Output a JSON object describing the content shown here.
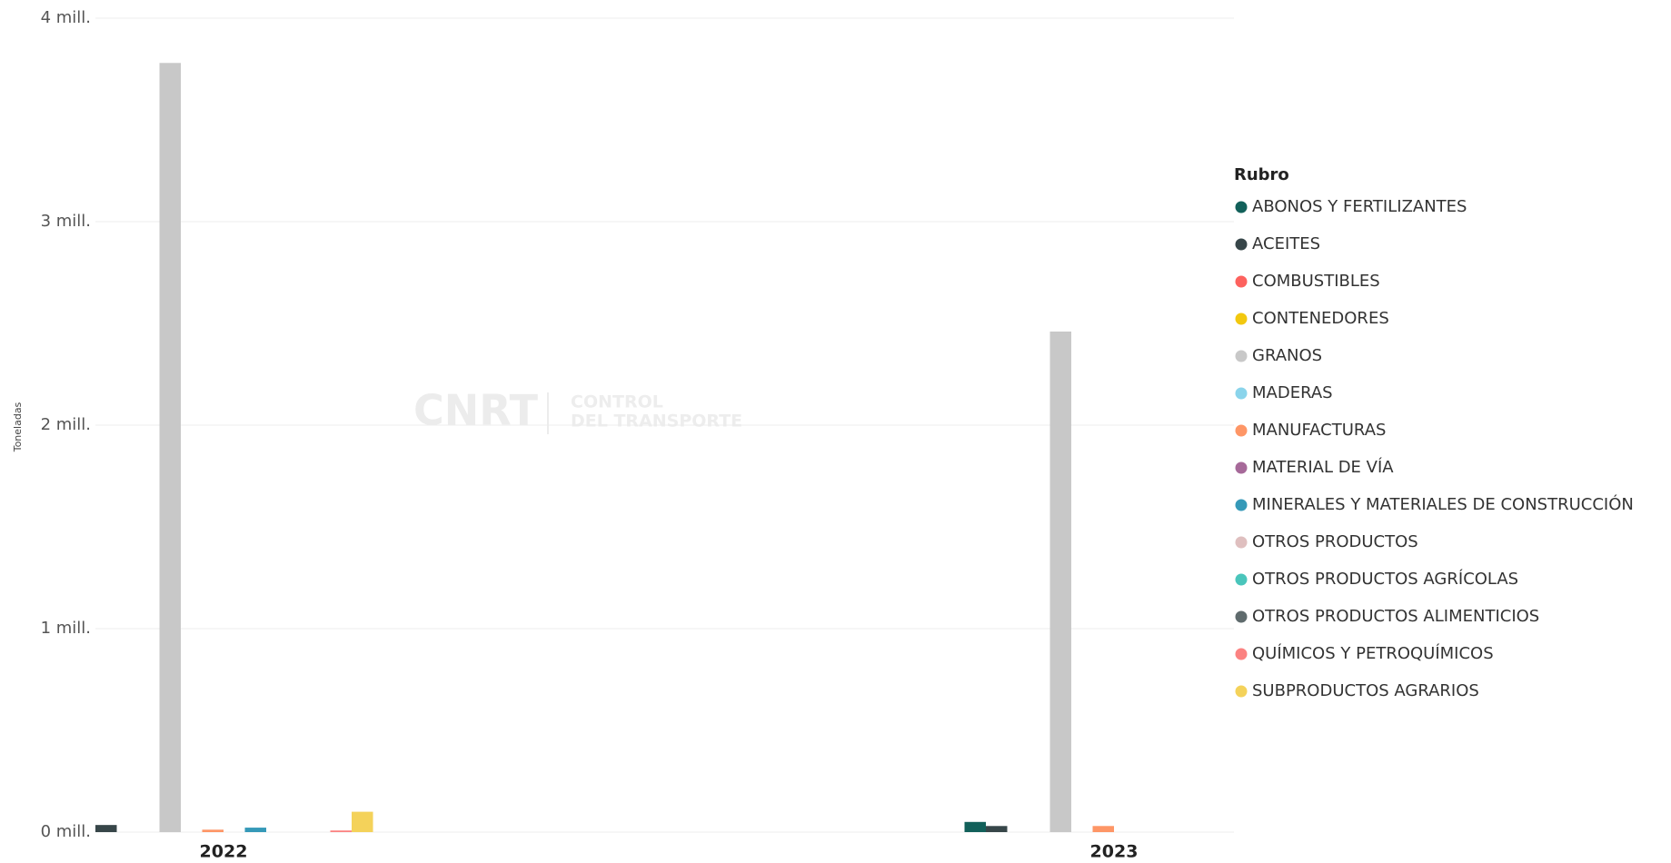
{
  "chart_data": {
    "type": "bar",
    "y_axis_label": "Toneladas",
    "legend_title": "Rubro",
    "watermark": [
      "CNRT",
      "CONTROL",
      "DEL TRANSPORTE"
    ],
    "categories": [
      "2022",
      "2023"
    ],
    "ylim": [
      0,
      4000000
    ],
    "yticks": [
      {
        "value": 0,
        "label": "0 mill."
      },
      {
        "value": 1000000,
        "label": "1 mill."
      },
      {
        "value": 2000000,
        "label": "2 mill."
      },
      {
        "value": 3000000,
        "label": "3 mill."
      },
      {
        "value": 4000000,
        "label": "4 mill."
      }
    ],
    "grid": true,
    "legend": "right",
    "series": [
      {
        "name": "ABONOS Y FERTILIZANTES",
        "color": "#12605a",
        "values": [
          null,
          50000
        ]
      },
      {
        "name": "ACEITES",
        "color": "#374649",
        "values": [
          35000,
          30000
        ]
      },
      {
        "name": "COMBUSTIBLES",
        "color": "#fd625e",
        "values": [
          null,
          null
        ]
      },
      {
        "name": "CONTENEDORES",
        "color": "#f2c80f",
        "values": [
          null,
          null
        ]
      },
      {
        "name": "GRANOS",
        "color": "#c8c8c8",
        "values": [
          3780000,
          2460000
        ]
      },
      {
        "name": "MADERAS",
        "color": "#8ad4eb",
        "values": [
          null,
          null
        ]
      },
      {
        "name": "MANUFACTURAS",
        "color": "#fe9666",
        "values": [
          12000,
          30000
        ]
      },
      {
        "name": "MATERIAL DE VÍA",
        "color": "#a66999",
        "values": [
          null,
          null
        ]
      },
      {
        "name": "MINERALES Y MATERIALES DE CONSTRUCCIÓN",
        "color": "#3599b8",
        "values": [
          22000,
          null
        ]
      },
      {
        "name": "OTROS PRODUCTOS",
        "color": "#dfbfbf",
        "values": [
          null,
          null
        ]
      },
      {
        "name": "OTROS PRODUCTOS AGRÍCOLAS",
        "color": "#4ac5bb",
        "values": [
          null,
          null
        ]
      },
      {
        "name": "OTROS PRODUCTOS ALIMENTICIOS",
        "color": "#5f6b6d",
        "values": [
          null,
          null
        ]
      },
      {
        "name": "QUÍMICOS Y PETROQUÍMICOS",
        "color": "#fb8281",
        "values": [
          8000,
          null
        ]
      },
      {
        "name": "SUBPRODUCTOS AGRARIOS",
        "color": "#f4d25a",
        "values": [
          100000,
          null
        ]
      }
    ]
  }
}
